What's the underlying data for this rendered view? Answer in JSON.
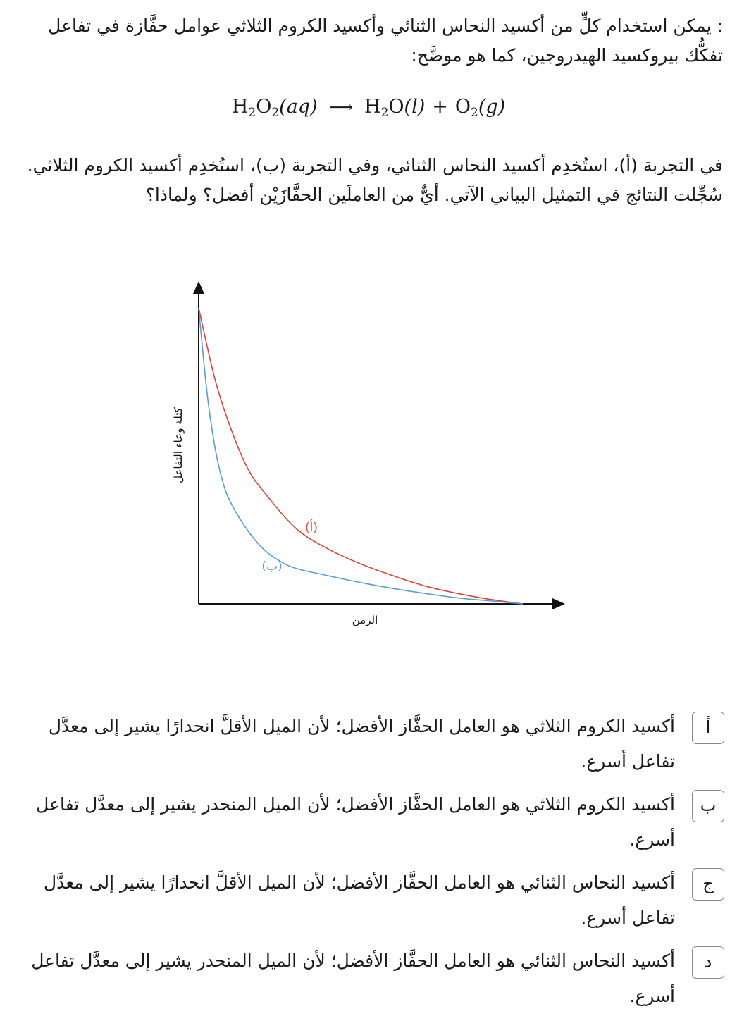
{
  "intro_text": ": يمكن استخدام كلٍّ من أكسيد النحاس الثنائي وأكسيد الكروم الثلاثي عوامل حفَّازة في تفاعل تفكُّك بيروكسيد الهيدروجين، كما هو موضَّح:",
  "equation": {
    "reactant_h": "H",
    "reactant_h_sub": "2",
    "reactant_o": "O",
    "reactant_o_sub": "2",
    "reactant_state": "(aq)",
    "arrow": "⟶",
    "product1": "H",
    "product1_sub": "2",
    "product1_o": "O",
    "product1_state": "(l)",
    "plus": "+",
    "product2": "O",
    "product2_sub": "2",
    "product2_state": "(g)"
  },
  "question_text": "في التجربة (أ)، استُخدِم أكسيد النحاس الثنائي، وفي التجربة (ب)، استُخدِم أكسيد الكروم الثلاثي. سُجِّلت النتائج في التمثيل البياني الآتي. أيٌّ من العاملَين الحفَّازَيْن أفضل؟ ولماذا؟",
  "chart_data": {
    "type": "line",
    "xlabel": "الزمن",
    "ylabel": "كتلة وعاء التفاعل",
    "xlim": [
      0,
      10
    ],
    "ylim": [
      0,
      10
    ],
    "grid": false,
    "series": [
      {
        "name": "(أ)",
        "color": "#d6453d",
        "x": [
          0,
          0.5,
          1,
          1.5,
          2,
          3,
          4,
          5,
          6,
          7,
          8,
          9,
          10
        ],
        "y": [
          10,
          7.6,
          5.9,
          4.6,
          3.8,
          2.55,
          1.85,
          1.35,
          0.95,
          0.6,
          0.35,
          0.15,
          0
        ]
      },
      {
        "name": "(ب)",
        "color": "#5b9bd5",
        "x": [
          0,
          0.25,
          0.5,
          0.75,
          1,
          1.5,
          2,
          2.5,
          3,
          4,
          5,
          6,
          7,
          8,
          9,
          10
        ],
        "y": [
          10,
          7.2,
          5.3,
          4.1,
          3.4,
          2.5,
          1.85,
          1.45,
          1.2,
          0.95,
          0.72,
          0.52,
          0.35,
          0.2,
          0.1,
          0
        ]
      }
    ]
  },
  "options": [
    {
      "letter": "أ",
      "text": "أكسيد الكروم الثلاثي هو العامل الحفَّاز الأفضل؛ لأن الميل الأقلَّ انحدارًا يشير إلى معدَّل تفاعل أسرع."
    },
    {
      "letter": "ب",
      "text": "أكسيد الكروم الثلاثي هو العامل الحفَّاز الأفضل؛ لأن الميل المنحدر يشير إلى معدَّل تفاعل أسرع."
    },
    {
      "letter": "ج",
      "text": "أكسيد النحاس الثنائي هو العامل الحفَّاز الأفضل؛ لأن الميل الأقلَّ انحدارًا يشير إلى معدَّل تفاعل أسرع."
    },
    {
      "letter": "د",
      "text": "أكسيد النحاس الثنائي هو العامل الحفَّاز الأفضل؛ لأن الميل المنحدر يشير إلى معدَّل تفاعل أسرع."
    }
  ]
}
